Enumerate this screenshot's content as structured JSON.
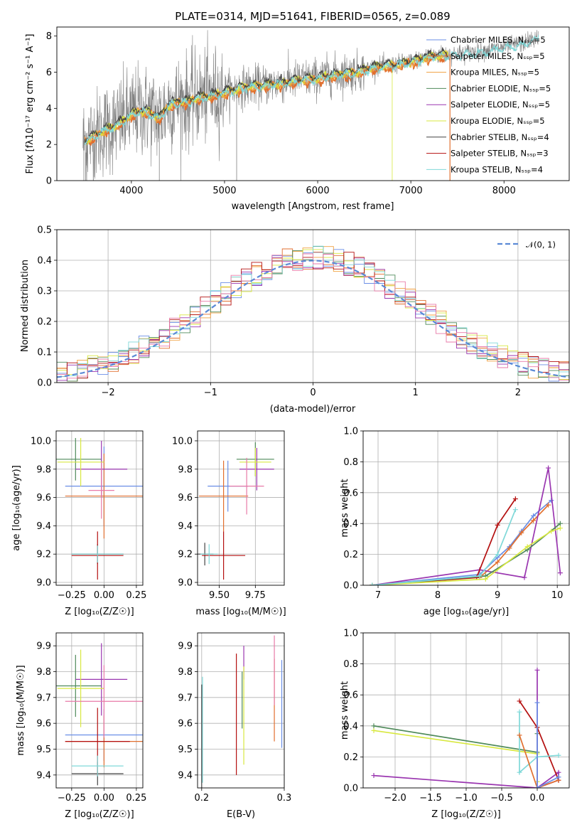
{
  "colors": {
    "chabrier_miles": "#6a8ee6",
    "salpeter_miles": "#e16f2f",
    "kroupa_miles": "#f0a040",
    "chabrier_elodie": "#4f8a5a",
    "salpeter_elodie": "#9a36b0",
    "kroupa_elodie": "#d8e840",
    "chabrier_stelib": "#444444",
    "salpeter_stelib": "#b41010",
    "kroupa_stelib": "#7fd8d8",
    "observed": "#808080",
    "pink": "#e87aa8",
    "gaussian": "#5b8ad6"
  },
  "chart_data": [
    {
      "type": "line",
      "title": "PLATE=0314, MJD=51641, FIBERID=0565, z=0.089",
      "xlabel": "wavelength [Angstrom, rest frame]",
      "ylabel": "Flux [f_λ10^-17 erg cm^-2 s^-1 A^-1]",
      "xlim": [
        3200,
        8700
      ],
      "ylim": [
        0,
        8.5
      ],
      "xticks": [
        4000,
        5000,
        6000,
        7000,
        8000
      ],
      "yticks": [
        0,
        2,
        4,
        6,
        8
      ],
      "legend": "upper right",
      "series": [
        {
          "name": "Chabrier MILES, N_SSP=5",
          "color_key": "chabrier_miles"
        },
        {
          "name": "Salpeter MILES, N_SSP=5",
          "color_key": "salpeter_miles"
        },
        {
          "name": "Kroupa MILES, N_SSP=5",
          "color_key": "kroupa_miles"
        },
        {
          "name": "Chabrier ELODIE, N_SSP=5",
          "color_key": "chabrier_elodie"
        },
        {
          "name": "Salpeter ELODIE, N_SSP=5",
          "color_key": "salpeter_elodie"
        },
        {
          "name": "Kroupa ELODIE, N_SSP=5",
          "color_key": "kroupa_elodie"
        },
        {
          "name": "Chabrier STELIB, N_SSP=4",
          "color_key": "chabrier_stelib"
        },
        {
          "name": "Salpeter STELIB, N_SSP=3",
          "color_key": "salpeter_stelib"
        },
        {
          "name": "Kroupa STELIB, N_SSP=4",
          "color_key": "kroupa_stelib"
        }
      ],
      "model_flux": {
        "x": [
          3500,
          3600,
          3700,
          3800,
          3900,
          4000,
          4100,
          4200,
          4300,
          4400,
          4500,
          4600,
          4700,
          4800,
          4900,
          5000,
          5200,
          5400,
          5600,
          5800,
          6000,
          6200,
          6400,
          6600,
          6800,
          7000,
          7200,
          7400,
          7600,
          7800,
          8000,
          8200,
          8400
        ],
        "y": [
          2.2,
          2.5,
          2.8,
          3.0,
          3.3,
          3.7,
          3.9,
          3.8,
          3.5,
          4.2,
          4.4,
          4.4,
          4.6,
          4.7,
          4.8,
          4.9,
          5.2,
          5.3,
          5.4,
          5.6,
          5.7,
          5.9,
          6.0,
          6.3,
          6.4,
          6.6,
          6.9,
          7.0,
          7.1,
          7.2,
          7.4,
          7.6,
          8.0
        ]
      }
    },
    {
      "type": "line",
      "xlabel": "(data-model)/error",
      "ylabel": "Normed distribution",
      "xlim": [
        -2.5,
        2.5
      ],
      "ylim": [
        0,
        0.5
      ],
      "xticks": [
        -2,
        -1,
        0,
        1,
        2
      ],
      "yticks": [
        0.0,
        0.1,
        0.2,
        0.3,
        0.4,
        0.5
      ],
      "legend": "upper right",
      "gaussian_label": "N(0, 1)",
      "bin_width": 0.1
    },
    {
      "type": "scatter",
      "xlabel": "Z [log10(Z/Z☉)]",
      "ylabel": "age [log10(age/yr)]",
      "xlim": [
        -0.37,
        0.3
      ],
      "ylim": [
        8.98,
        10.07
      ],
      "xticks": [
        -0.25,
        0.0,
        0.25
      ],
      "yticks": [
        9.0,
        9.2,
        9.4,
        9.6,
        9.8,
        10.0
      ],
      "points": [
        {
          "color_key": "chabrier_miles",
          "x": 0.0,
          "xerr": [
            0.3,
            0.3
          ],
          "y": 9.68,
          "yerr": [
            0.28,
            0.28
          ]
        },
        {
          "color_key": "salpeter_miles",
          "x": 0.0,
          "xerr": [
            0.3,
            0.3
          ],
          "y": 9.61,
          "yerr": [
            0.3,
            0.3
          ]
        },
        {
          "color_key": "chabrier_elodie",
          "x": -0.22,
          "xerr": [
            0.2,
            0.2
          ],
          "y": 9.87,
          "yerr": [
            0.15,
            0.15
          ]
        },
        {
          "color_key": "salpeter_elodie",
          "x": -0.02,
          "xerr": [
            0.2,
            0.2
          ],
          "y": 9.8,
          "yerr": [
            0.2,
            0.2
          ]
        },
        {
          "color_key": "kroupa_elodie",
          "x": -0.18,
          "xerr": [
            0.18,
            0.18
          ],
          "y": 9.85,
          "yerr": [
            0.17,
            0.17
          ]
        },
        {
          "color_key": "pink",
          "x": -0.02,
          "xerr": [
            0.1,
            0.1
          ],
          "y": 9.65,
          "yerr": [
            0.2,
            0.2
          ]
        },
        {
          "color_key": "chabrier_stelib",
          "x": -0.05,
          "xerr": [
            0.2,
            0.2
          ],
          "y": 9.2,
          "yerr": [
            0.07,
            0.07
          ]
        },
        {
          "color_key": "salpeter_stelib",
          "x": -0.05,
          "xerr": [
            0.2,
            0.2
          ],
          "y": 9.19,
          "yerr": [
            0.17,
            0.17
          ]
        },
        {
          "color_key": "kroupa_stelib",
          "x": -0.05,
          "xerr": [
            0.2,
            0.2
          ],
          "y": 9.2,
          "yerr": [
            0.06,
            0.06
          ]
        }
      ]
    },
    {
      "type": "scatter",
      "xlabel": "mass [log10(M/M☉)]",
      "ylabel": "",
      "xlim": [
        9.35,
        9.95
      ],
      "ylim": [
        8.98,
        10.07
      ],
      "xticks": [
        9.5,
        9.75
      ],
      "yticks": [
        9.0,
        9.2,
        9.4,
        9.6,
        9.8,
        10.0
      ],
      "points": [
        {
          "color_key": "chabrier_miles",
          "x": 9.56,
          "xerr": [
            0.14,
            0.14
          ],
          "y": 9.68,
          "yerr": [
            0.18,
            0.18
          ]
        },
        {
          "color_key": "salpeter_miles",
          "x": 9.53,
          "xerr": [
            0.17,
            0.17
          ],
          "y": 9.61,
          "yerr": [
            0.25,
            0.25
          ]
        },
        {
          "color_key": "chabrier_elodie",
          "x": 9.75,
          "xerr": [
            0.13,
            0.13
          ],
          "y": 9.87,
          "yerr": [
            0.12,
            0.12
          ]
        },
        {
          "color_key": "salpeter_elodie",
          "x": 9.76,
          "xerr": [
            0.12,
            0.12
          ],
          "y": 9.8,
          "yerr": [
            0.15,
            0.15
          ]
        },
        {
          "color_key": "kroupa_elodie",
          "x": 9.75,
          "xerr": [
            0.11,
            0.11
          ],
          "y": 9.85,
          "yerr": [
            0.1,
            0.1
          ]
        },
        {
          "color_key": "pink",
          "x": 9.69,
          "xerr": [
            0.12,
            0.12
          ],
          "y": 9.68,
          "yerr": [
            0.2,
            0.2
          ]
        },
        {
          "color_key": "chabrier_stelib",
          "x": 9.4,
          "xerr": [
            0.06,
            0.06
          ],
          "y": 9.2,
          "yerr": [
            0.08,
            0.08
          ]
        },
        {
          "color_key": "salpeter_stelib",
          "x": 9.53,
          "xerr": [
            0.15,
            0.15
          ],
          "y": 9.19,
          "yerr": [
            0.17,
            0.17
          ]
        },
        {
          "color_key": "kroupa_stelib",
          "x": 9.43,
          "xerr": [
            0.06,
            0.06
          ],
          "y": 9.2,
          "yerr": [
            0.07,
            0.07
          ]
        }
      ]
    },
    {
      "type": "line",
      "xlabel": "age [log10(age/yr)]",
      "ylabel": "mass weight",
      "xlim": [
        6.75,
        10.2
      ],
      "ylim": [
        0,
        1.0
      ],
      "xticks": [
        7,
        8,
        9,
        10
      ],
      "yticks": [
        0.0,
        0.2,
        0.4,
        0.6,
        0.8,
        1.0
      ],
      "series": [
        {
          "color_key": "chabrier_miles",
          "x": [
            6.9,
            8.7,
            9.0,
            9.2,
            9.4,
            9.6,
            9.9
          ],
          "y": [
            0.0,
            0.07,
            0.18,
            0.25,
            0.35,
            0.45,
            0.55
          ]
        },
        {
          "color_key": "salpeter_miles",
          "x": [
            6.9,
            8.7,
            9.0,
            9.2,
            9.4,
            9.6,
            9.85
          ],
          "y": [
            0.0,
            0.05,
            0.15,
            0.24,
            0.34,
            0.42,
            0.52
          ]
        },
        {
          "color_key": "salpeter_elodie",
          "x": [
            6.9,
            8.7,
            9.45,
            9.85,
            10.05
          ],
          "y": [
            0.0,
            0.1,
            0.05,
            0.76,
            0.08
          ]
        },
        {
          "color_key": "salpeter_stelib",
          "x": [
            6.9,
            8.65,
            9.0,
            9.3
          ],
          "y": [
            0.0,
            0.05,
            0.39,
            0.56
          ]
        },
        {
          "color_key": "chabrier_elodie",
          "x": [
            6.9,
            8.8,
            9.5,
            10.05
          ],
          "y": [
            0.0,
            0.06,
            0.23,
            0.4
          ]
        },
        {
          "color_key": "kroupa_elodie",
          "x": [
            6.9,
            8.8,
            9.5,
            9.9,
            10.05
          ],
          "y": [
            0.0,
            0.04,
            0.25,
            0.35,
            0.37
          ]
        },
        {
          "color_key": "kroupa_stelib",
          "x": [
            6.9,
            8.7,
            9.0,
            9.3
          ],
          "y": [
            0.0,
            0.06,
            0.2,
            0.49
          ]
        }
      ]
    },
    {
      "type": "scatter",
      "xlabel": "Z [log10(Z/Z☉)]",
      "ylabel": "mass [log10(M/M☉)]",
      "xlim": [
        -0.37,
        0.3
      ],
      "ylim": [
        9.35,
        9.95
      ],
      "xticks": [
        -0.25,
        0.0,
        0.25
      ],
      "yticks": [
        9.4,
        9.5,
        9.6,
        9.7,
        9.8,
        9.9
      ],
      "points": [
        {
          "color_key": "chabrier_miles",
          "x": 0.0,
          "xerr": [
            0.3,
            0.3
          ],
          "y": 9.555,
          "yerr": [
            0.1,
            0.1
          ]
        },
        {
          "color_key": "salpeter_miles",
          "x": 0.0,
          "xerr": [
            0.3,
            0.3
          ],
          "y": 9.53,
          "yerr": [
            0.1,
            0.1
          ]
        },
        {
          "color_key": "chabrier_elodie",
          "x": -0.22,
          "xerr": [
            0.2,
            0.2
          ],
          "y": 9.745,
          "yerr": [
            0.12,
            0.12
          ]
        },
        {
          "color_key": "salpeter_elodie",
          "x": -0.02,
          "xerr": [
            0.2,
            0.2
          ],
          "y": 9.77,
          "yerr": [
            0.14,
            0.14
          ]
        },
        {
          "color_key": "kroupa_elodie",
          "x": -0.18,
          "xerr": [
            0.18,
            0.18
          ],
          "y": 9.735,
          "yerr": [
            0.15,
            0.15
          ]
        },
        {
          "color_key": "pink",
          "x": 0.0,
          "xerr": [
            0.3,
            0.3
          ],
          "y": 9.685,
          "yerr": [
            0.14,
            0.14
          ]
        },
        {
          "color_key": "chabrier_stelib",
          "x": -0.05,
          "xerr": [
            0.2,
            0.2
          ],
          "y": 9.405,
          "yerr": [
            0.045,
            0.045
          ]
        },
        {
          "color_key": "salpeter_stelib",
          "x": -0.05,
          "xerr": [
            0.25,
            0.25
          ],
          "y": 9.53,
          "yerr": [
            0.13,
            0.13
          ]
        },
        {
          "color_key": "kroupa_stelib",
          "x": -0.05,
          "xerr": [
            0.2,
            0.2
          ],
          "y": 9.435,
          "yerr": [
            0.04,
            0.04
          ]
        }
      ]
    },
    {
      "type": "scatter",
      "xlabel": "E(B-V)",
      "ylabel": "",
      "xlim": [
        0.195,
        0.3
      ],
      "ylim": [
        9.35,
        9.95
      ],
      "xticks": [
        0.2,
        0.3
      ],
      "yticks": [
        9.4,
        9.5,
        9.6,
        9.7,
        9.8,
        9.9
      ],
      "points": [
        {
          "color_key": "chabrier_miles",
          "x": 0.297,
          "y": 9.555,
          "yerr": [
            0.05,
            0.29
          ]
        },
        {
          "color_key": "salpeter_miles",
          "x": 0.288,
          "y": 9.53,
          "yerr": [
            0.0,
            0.32
          ]
        },
        {
          "color_key": "pink",
          "x": 0.288,
          "y": 9.7,
          "yerr": [
            0.03,
            0.24
          ]
        },
        {
          "color_key": "salpeter_elodie",
          "x": 0.251,
          "y": 9.77,
          "yerr": [
            0.0,
            0.13
          ]
        },
        {
          "color_key": "kroupa_elodie",
          "x": 0.251,
          "y": 9.6,
          "yerr": [
            0.16,
            0.22
          ]
        },
        {
          "color_key": "chabrier_elodie",
          "x": 0.249,
          "y": 9.7,
          "yerr": [
            0.12,
            0.1
          ]
        },
        {
          "color_key": "salpeter_stelib",
          "x": 0.242,
          "y": 9.53,
          "yerr": [
            0.13,
            0.34
          ]
        },
        {
          "color_key": "kroupa_stelib",
          "x": 0.201,
          "y": 9.5,
          "yerr": [
            0.13,
            0.28
          ]
        },
        {
          "color_key": "chabrier_stelib",
          "x": 0.2,
          "y": 9.55,
          "yerr": [
            0.2,
            0.2
          ]
        }
      ]
    },
    {
      "type": "line",
      "xlabel": "Z [log10(Z/Z☉)]",
      "ylabel": "mass weight",
      "xlim": [
        -2.45,
        0.45
      ],
      "ylim": [
        0,
        1.0
      ],
      "xticks": [
        -2.0,
        -1.5,
        -1.0,
        -0.5,
        0.0
      ],
      "yticks": [
        0.0,
        0.2,
        0.4,
        0.6,
        0.8,
        1.0
      ],
      "series": [
        {
          "color_key": "chabrier_elodie",
          "x": [
            -2.3,
            0.0,
            0.0
          ],
          "y": [
            0.4,
            0.23,
            0.35
          ]
        },
        {
          "color_key": "kroupa_elodie",
          "x": [
            -2.3,
            0.0,
            0.0
          ],
          "y": [
            0.37,
            0.22,
            0.04
          ]
        },
        {
          "color_key": "salpeter_elodie",
          "x": [
            -2.3,
            0.0,
            0.3,
            0.3
          ],
          "y": [
            0.08,
            0.0,
            0.1,
            0.05
          ]
        },
        {
          "color_key": "salpeter_elodie",
          "x": [
            0.0,
            0.0,
            0.3
          ],
          "y": [
            0.76,
            0.0,
            0.05
          ]
        },
        {
          "color_key": "salpeter_stelib",
          "x": [
            -0.25,
            0.0,
            0.3
          ],
          "y": [
            0.56,
            0.39,
            0.05
          ]
        },
        {
          "color_key": "kroupa_stelib",
          "x": [
            -0.25,
            -0.25,
            0.0,
            0.3
          ],
          "y": [
            0.49,
            0.1,
            0.2,
            0.21
          ]
        },
        {
          "color_key": "salpeter_miles",
          "x": [
            -0.25,
            0.0,
            0.3
          ],
          "y": [
            0.34,
            0.0,
            0.05
          ]
        },
        {
          "color_key": "chabrier_miles",
          "x": [
            0.0,
            0.0,
            0.3
          ],
          "y": [
            0.55,
            0.0,
            0.07
          ]
        }
      ]
    }
  ]
}
